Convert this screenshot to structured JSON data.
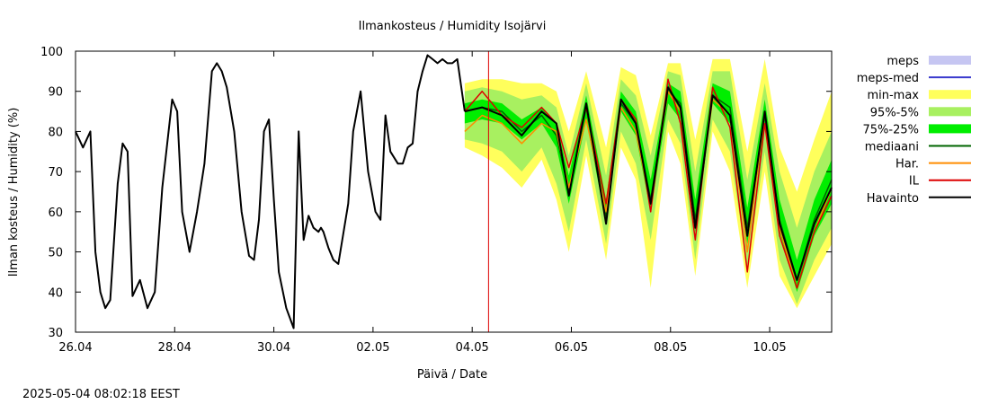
{
  "timestamp": "2025-05-04 08:02:18 EEST",
  "chart_data": {
    "type": "line",
    "title": "Ilmankosteus / Humidity  Isojärvi",
    "xlabel": "Päivä / Date",
    "ylabel": "Ilman kosteus / Humidity (%)",
    "x_unit": "days since 26.04 00:00",
    "xlim": [
      0,
      15.25
    ],
    "ylim": [
      30,
      100
    ],
    "yticks": [
      30,
      40,
      50,
      60,
      70,
      80,
      90,
      100
    ],
    "xticks": [
      {
        "x": 0,
        "label": "26.04"
      },
      {
        "x": 2,
        "label": "28.04"
      },
      {
        "x": 4,
        "label": "30.04"
      },
      {
        "x": 6,
        "label": "02.05"
      },
      {
        "x": 8,
        "label": "04.05"
      },
      {
        "x": 10,
        "label": "06.05"
      },
      {
        "x": 12,
        "label": "08.05"
      },
      {
        "x": 14,
        "label": "10.05"
      }
    ],
    "now_line_x": 8.33,
    "grid": false,
    "legend_position": "right",
    "legend": [
      {
        "label": "meps",
        "color": "#c6c6f2",
        "style": "box"
      },
      {
        "label": "meps-med",
        "color": "#3a3acd",
        "style": "line"
      },
      {
        "label": "min-max",
        "color": "#ffff5c",
        "style": "box"
      },
      {
        "label": "95%-5%",
        "color": "#a8f060",
        "style": "box"
      },
      {
        "label": "75%-25%",
        "color": "#00ee00",
        "style": "box"
      },
      {
        "label": "mediaani",
        "color": "#006400",
        "style": "line"
      },
      {
        "label": "Har.",
        "color": "#ff8c00",
        "style": "line"
      },
      {
        "label": "IL",
        "color": "#dd0000",
        "style": "line"
      },
      {
        "label": "Havainto",
        "color": "#000000",
        "style": "line"
      }
    ],
    "forecast": {
      "x": [
        7.85,
        8.2,
        8.6,
        9.0,
        9.4,
        9.7,
        9.95,
        10.3,
        10.7,
        11.0,
        11.3,
        11.6,
        11.95,
        12.2,
        12.5,
        12.85,
        13.2,
        13.55,
        13.9,
        14.2,
        14.55,
        14.9,
        15.25
      ],
      "mediaani": [
        85,
        86,
        85,
        80,
        84,
        79,
        65,
        86,
        59,
        87,
        82,
        63,
        90,
        87,
        58,
        89,
        86,
        56,
        84,
        58,
        43,
        58,
        68
      ],
      "har": [
        80,
        84,
        82,
        77,
        82,
        80,
        66,
        83,
        60,
        86,
        80,
        62,
        90,
        85,
        56,
        88,
        84,
        50,
        85,
        56,
        41,
        55,
        66
      ],
      "il": [
        85,
        90,
        84,
        81,
        86,
        82,
        71,
        86,
        62,
        88,
        83,
        60,
        93,
        82,
        53,
        91,
        81,
        45,
        82,
        54,
        41,
        55,
        64
      ],
      "p25": [
        82,
        83,
        82,
        78,
        82,
        76,
        62,
        83,
        57,
        85,
        79,
        60,
        87,
        83,
        55,
        87,
        82,
        52,
        81,
        55,
        40,
        54,
        62
      ],
      "p75": [
        87,
        88,
        87,
        83,
        86,
        82,
        69,
        89,
        63,
        90,
        85,
        68,
        92,
        90,
        63,
        92,
        90,
        61,
        88,
        63,
        48,
        63,
        73
      ],
      "p5": [
        78,
        77,
        75,
        70,
        76,
        67,
        55,
        78,
        52,
        80,
        72,
        53,
        83,
        77,
        48,
        83,
        75,
        46,
        75,
        48,
        37,
        48,
        56
      ],
      "p95": [
        90,
        91,
        90,
        88,
        89,
        86,
        74,
        92,
        69,
        93,
        89,
        74,
        95,
        94,
        70,
        95,
        95,
        68,
        92,
        70,
        56,
        70,
        80
      ],
      "min": [
        76,
        74,
        71,
        66,
        73,
        63,
        50,
        74,
        48,
        76,
        68,
        41,
        80,
        72,
        44,
        80,
        70,
        41,
        70,
        44,
        36,
        44,
        52
      ],
      "max": [
        92,
        93,
        93,
        92,
        92,
        90,
        80,
        95,
        76,
        96,
        94,
        79,
        97,
        97,
        78,
        98,
        98,
        75,
        98,
        76,
        65,
        78,
        90
      ]
    },
    "havainto": {
      "x": [
        0.0,
        0.15,
        0.3,
        0.4,
        0.5,
        0.6,
        0.7,
        0.85,
        0.95,
        1.05,
        1.15,
        1.3,
        1.45,
        1.6,
        1.75,
        1.85,
        1.95,
        2.05,
        2.15,
        2.3,
        2.45,
        2.6,
        2.75,
        2.85,
        2.95,
        3.05,
        3.2,
        3.35,
        3.5,
        3.6,
        3.7,
        3.8,
        3.9,
        4.0,
        4.1,
        4.25,
        4.4,
        4.5,
        4.6,
        4.7,
        4.8,
        4.9,
        4.95,
        5.0,
        5.1,
        5.2,
        5.3,
        5.5,
        5.6,
        5.75,
        5.9,
        6.05,
        6.15,
        6.25,
        6.35,
        6.5,
        6.6,
        6.7,
        6.8,
        6.9,
        7.0,
        7.1,
        7.2,
        7.3,
        7.4,
        7.5,
        7.6,
        7.7,
        7.85
      ],
      "y": [
        80,
        76,
        80,
        50,
        40,
        36,
        38,
        67,
        77,
        75,
        39,
        43,
        36,
        40,
        66,
        77,
        88,
        85,
        60,
        50,
        60,
        72,
        95,
        97,
        95,
        91,
        80,
        60,
        49,
        48,
        58,
        80,
        83,
        63,
        45,
        36,
        31,
        80,
        53,
        59,
        56,
        55,
        56,
        55,
        51,
        48,
        47,
        62,
        80,
        90,
        70,
        60,
        58,
        84,
        75,
        72,
        72,
        76,
        77,
        90,
        95,
        99,
        98,
        97,
        98,
        97,
        97,
        98,
        85
      ]
    },
    "havainto_fc": [
      85,
      86,
      84,
      79,
      85,
      82,
      64,
      87,
      57,
      88,
      82,
      62,
      91,
      86,
      56,
      89,
      84,
      54,
      85,
      57,
      43,
      57,
      66
    ]
  }
}
